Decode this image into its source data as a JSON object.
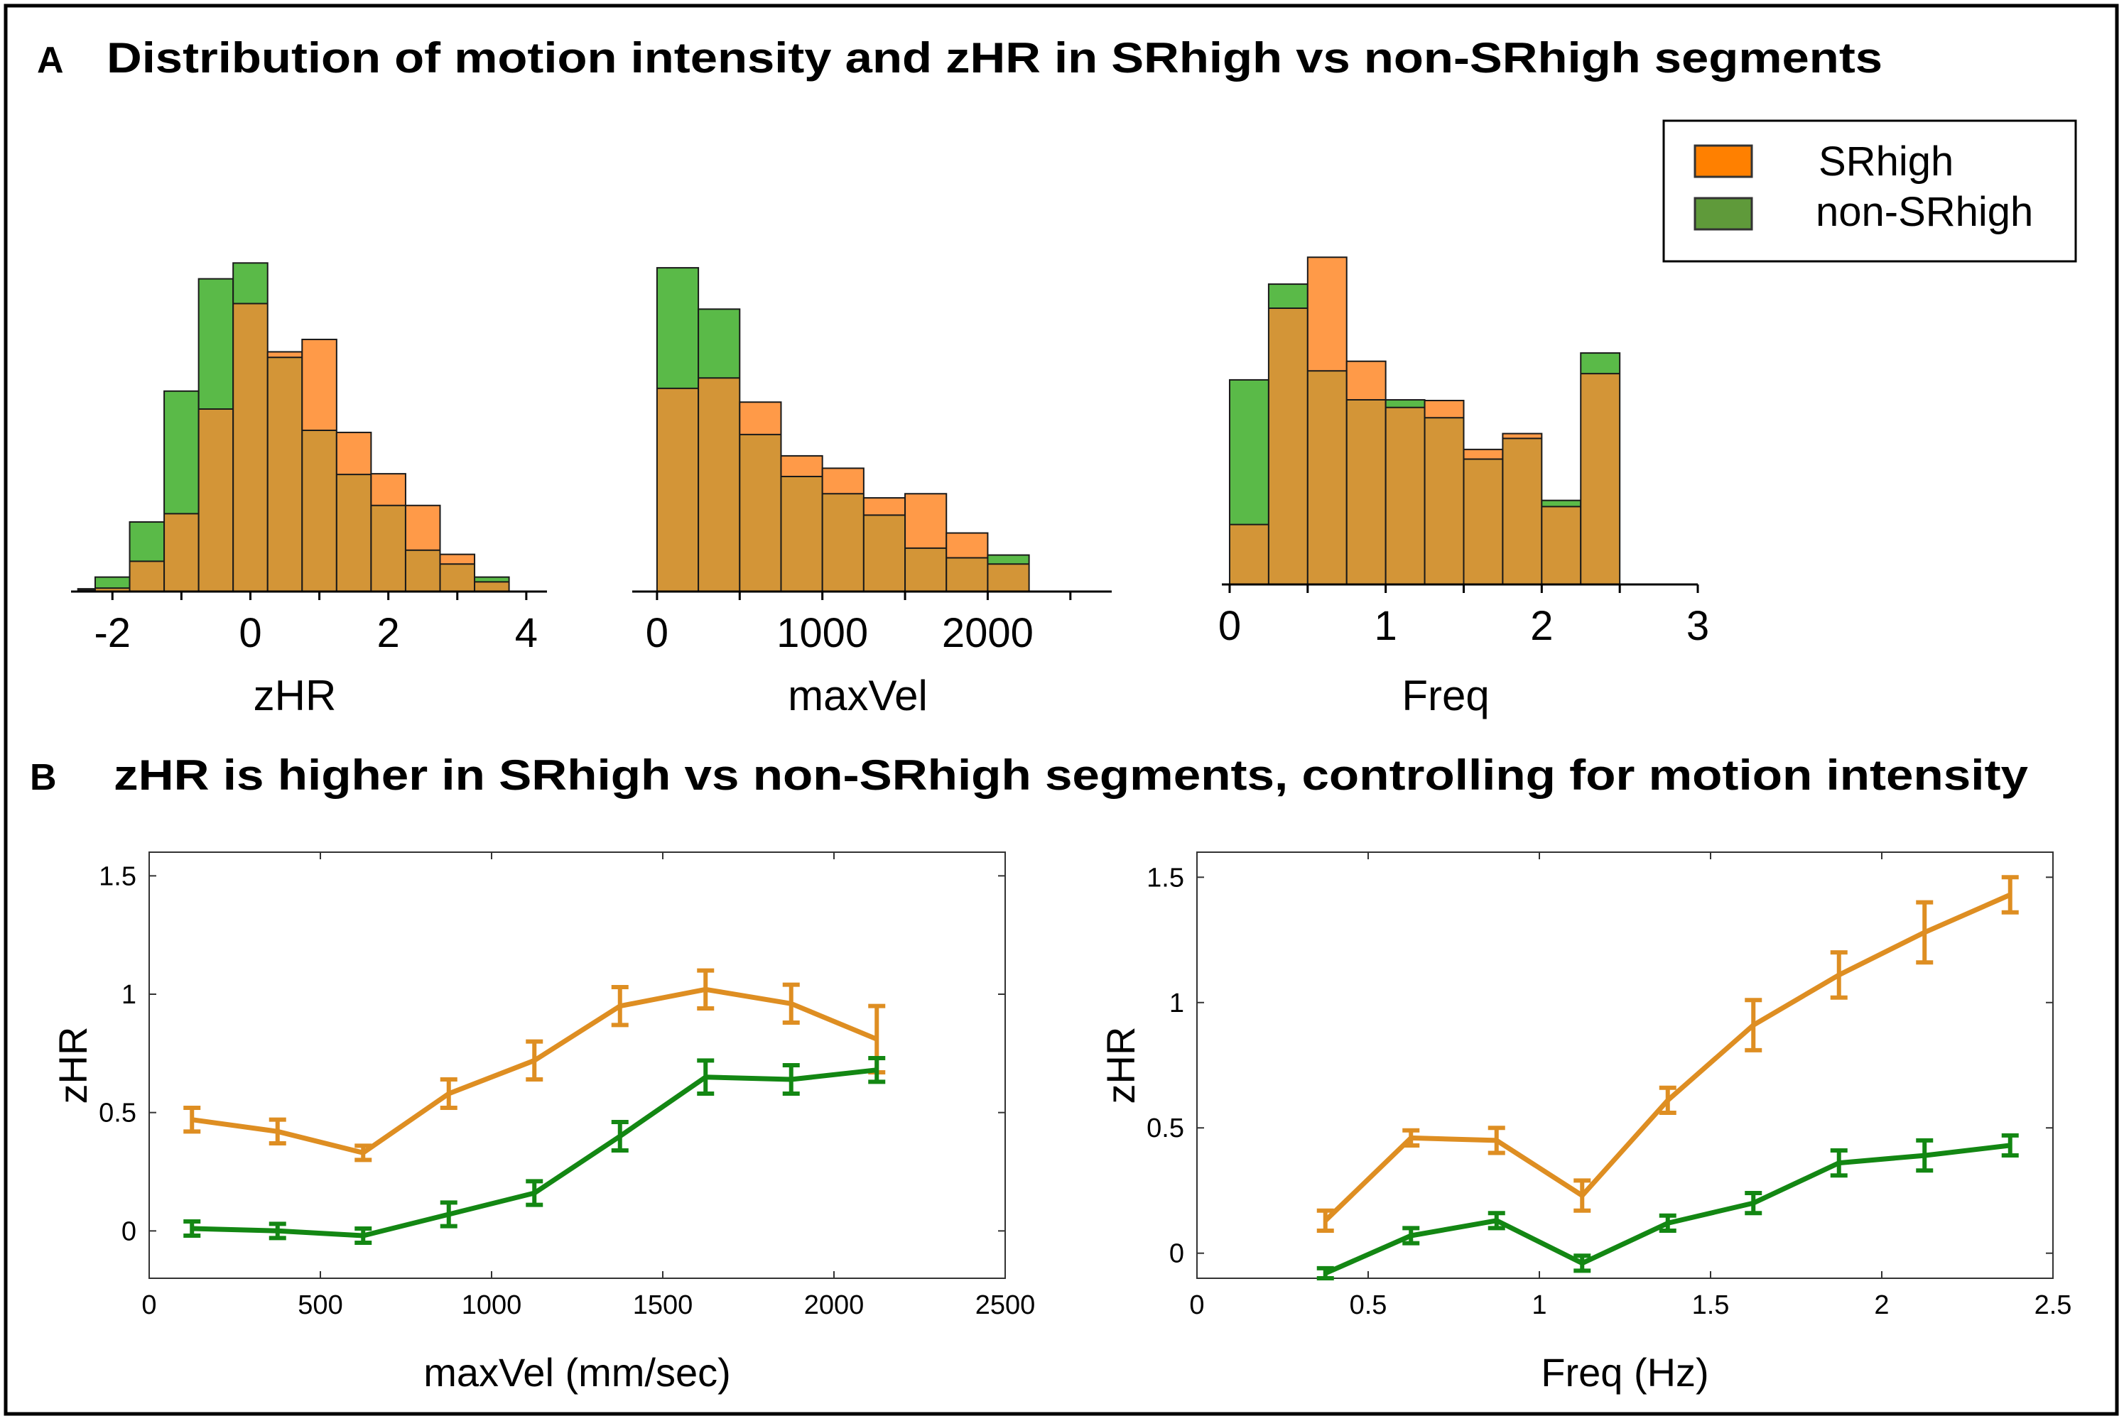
{
  "panel_a": {
    "letter": "A",
    "title": "Distribution of motion intensity and zHR in SRhigh vs non-SRhigh segments",
    "legend": [
      "SRhigh",
      "non-SRhigh"
    ]
  },
  "panel_b": {
    "letter": "B",
    "title": "zHR is higher in SRhigh vs non-SRhigh segments, controlling for motion intensity"
  },
  "colors": {
    "srhigh": "#ff9a48",
    "nonsrhigh": "#5aba48",
    "overlap": "#d39537",
    "srhigh_legend": "#ff8000",
    "nonsrhigh_legend": "#5f9a3a",
    "line_orange": "#de8e22",
    "line_green": "#138713"
  },
  "chart_data": [
    {
      "type": "bar",
      "subtype": "overlaid-histogram",
      "xlabel": "zHR",
      "ylabel": "",
      "xlim": [
        -2.6,
        4.3
      ],
      "ticks": [
        -2,
        0,
        2,
        4
      ],
      "bin_width": 0.5,
      "bin_starts": [
        -2.5,
        -2.25,
        -1.75,
        -1.25,
        -0.75,
        -0.25,
        0.25,
        0.75,
        1.25,
        1.75,
        2.25,
        2.75,
        3.25
      ],
      "series": [
        {
          "name": "SRhigh",
          "values": [
            0.2,
            0.5,
            4.4,
            11.3,
            26.5,
            41.8,
            34.8,
            36.6,
            23.1,
            17.1,
            12.5,
            5.4,
            1.4
          ]
        },
        {
          "name": "non-SRhigh",
          "values": [
            0.4,
            2.1,
            10.1,
            29.1,
            45.4,
            47.7,
            34.0,
            23.4,
            17.0,
            12.5,
            6.0,
            4.0,
            2.1
          ]
        }
      ]
    },
    {
      "type": "bar",
      "subtype": "overlaid-histogram",
      "xlabel": "maxVel",
      "ylabel": "",
      "xlim": [
        -150,
        2750
      ],
      "ticks": [
        0,
        1000,
        2000
      ],
      "bin_width": 250,
      "bin_starts": [
        0,
        250,
        500,
        750,
        1000,
        1250,
        1500,
        1750,
        2000
      ],
      "series": [
        {
          "name": "SRhigh",
          "values": [
            29.5,
            31.0,
            27.5,
            19.7,
            17.9,
            13.6,
            14.2,
            8.5,
            4.0
          ]
        },
        {
          "name": "non-SRhigh",
          "values": [
            47.0,
            41.0,
            22.8,
            16.7,
            14.2,
            11.1,
            6.3,
            4.9,
            5.3
          ]
        }
      ]
    },
    {
      "type": "bar",
      "subtype": "overlaid-histogram",
      "xlabel": "Freq",
      "ylabel": "",
      "xlim": [
        -0.05,
        3.0
      ],
      "ticks": [
        0,
        1,
        2,
        3
      ],
      "bin_width": 0.25,
      "bin_starts": [
        0,
        0.25,
        0.5,
        0.75,
        1.0,
        1.25,
        1.5,
        1.75,
        2.0,
        2.25
      ],
      "series": [
        {
          "name": "SRhigh",
          "values": [
            8.7,
            40.1,
            47.5,
            32.4,
            25.7,
            26.7,
            19.6,
            21.9,
            11.3,
            30.6
          ]
        },
        {
          "name": "non-SRhigh",
          "values": [
            29.7,
            43.6,
            31.0,
            26.8,
            26.8,
            24.2,
            18.2,
            21.2,
            12.2,
            33.6
          ]
        }
      ]
    },
    {
      "type": "line",
      "title": "",
      "xlabel": "maxVel (mm/sec)",
      "ylabel": "zHR",
      "xlim": [
        0,
        2500
      ],
      "ylim": [
        -0.2,
        1.6
      ],
      "xticks": [
        0,
        500,
        1000,
        1500,
        2000,
        2500
      ],
      "yticks": [
        0,
        0.5,
        1,
        1.5
      ],
      "x": [
        125,
        375,
        625,
        875,
        1125,
        1375,
        1625,
        1875,
        2125
      ],
      "series": [
        {
          "name": "SRhigh",
          "values": [
            0.47,
            0.42,
            0.33,
            0.58,
            0.72,
            0.95,
            1.02,
            0.96,
            0.81
          ],
          "errors": [
            0.05,
            0.05,
            0.03,
            0.06,
            0.08,
            0.08,
            0.08,
            0.08,
            0.14
          ]
        },
        {
          "name": "non-SRhigh",
          "values": [
            0.01,
            0.0,
            -0.02,
            0.07,
            0.16,
            0.4,
            0.65,
            0.64,
            0.68
          ],
          "errors": [
            0.03,
            0.03,
            0.03,
            0.05,
            0.05,
            0.06,
            0.07,
            0.06,
            0.05
          ]
        }
      ]
    },
    {
      "type": "line",
      "title": "",
      "xlabel": "Freq (Hz)",
      "ylabel": "zHR",
      "xlim": [
        0,
        2.5
      ],
      "ylim": [
        -0.1,
        1.6
      ],
      "xticks": [
        0,
        0.5,
        1,
        1.5,
        2,
        2.5
      ],
      "yticks": [
        0,
        0.5,
        1,
        1.5
      ],
      "x": [
        0.375,
        0.625,
        0.875,
        1.125,
        1.375,
        1.625,
        1.875,
        2.125,
        2.375
      ],
      "series": [
        {
          "name": "SRhigh",
          "values": [
            0.13,
            0.46,
            0.45,
            0.23,
            0.61,
            0.91,
            1.11,
            1.28,
            1.43
          ],
          "errors": [
            0.04,
            0.03,
            0.05,
            0.06,
            0.05,
            0.1,
            0.09,
            0.12,
            0.07
          ]
        },
        {
          "name": "non-SRhigh",
          "values": [
            -0.08,
            0.07,
            0.13,
            -0.04,
            0.12,
            0.2,
            0.36,
            0.39,
            0.43
          ],
          "errors": [
            0.02,
            0.03,
            0.03,
            0.03,
            0.03,
            0.04,
            0.05,
            0.06,
            0.04
          ]
        }
      ]
    }
  ]
}
